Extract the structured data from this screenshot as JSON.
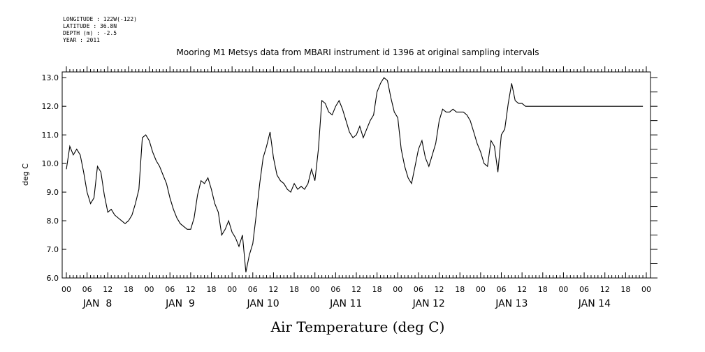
{
  "header": {
    "longitude": "LONGITUDE : 122W(-122)",
    "latitude": "LATITUDE : 36.8N",
    "depth": "DEPTH (m) : -2.5",
    "year": "YEAR : 2011"
  },
  "chart_data": {
    "type": "line",
    "title": "Mooring M1 Metsys data from MBARI instrument id 1396 at original sampling intervals",
    "xlabel": "Air Temperature (deg C)",
    "ylabel": "deg C",
    "ylim": [
      6.0,
      13.2
    ],
    "yticks": [
      "6.0",
      "7.0",
      "8.0",
      "9.0",
      "10.0",
      "11.0",
      "12.0",
      "13.0"
    ],
    "xrange_hours": [
      0,
      168
    ],
    "hour_tick_labels": [
      "00",
      "06",
      "12",
      "18",
      "00",
      "06",
      "12",
      "18",
      "00",
      "06",
      "12",
      "18",
      "00",
      "06",
      "12",
      "18",
      "00",
      "06",
      "12",
      "18",
      "00",
      "06",
      "12",
      "18",
      "00",
      "06",
      "12",
      "18",
      "00"
    ],
    "day_labels": [
      "JAN  8",
      "JAN  9",
      "JAN 10",
      "JAN 11",
      "JAN 12",
      "JAN 13",
      "JAN 14"
    ],
    "x_hours": [
      0,
      1,
      2,
      3,
      4,
      5,
      6,
      7,
      8,
      9,
      10,
      11,
      12,
      13,
      14,
      15,
      16,
      17,
      18,
      19,
      20,
      21,
      22,
      23,
      24,
      25,
      26,
      27,
      28,
      29,
      30,
      31,
      32,
      33,
      34,
      35,
      36,
      37,
      38,
      39,
      40,
      41,
      42,
      43,
      44,
      45,
      46,
      47,
      48,
      49,
      50,
      51,
      52,
      53,
      54,
      55,
      56,
      57,
      58,
      59,
      60,
      61,
      62,
      63,
      64,
      65,
      66,
      67,
      68,
      69,
      70,
      71,
      72,
      73,
      74,
      75,
      76,
      77,
      78,
      79,
      80,
      81,
      82,
      83,
      84,
      85,
      86,
      87,
      88,
      89,
      90,
      91,
      92,
      93,
      94,
      95,
      96,
      97,
      98,
      99,
      100,
      101,
      102,
      103,
      104,
      105,
      106,
      107,
      108,
      109,
      110,
      111,
      112,
      113,
      114,
      115,
      116,
      117,
      118,
      119,
      120,
      121,
      122,
      123,
      124,
      125,
      126,
      127,
      128,
      129,
      130,
      131,
      132,
      133,
      134,
      135,
      136,
      137,
      138,
      139,
      140,
      141,
      142,
      143,
      144,
      145,
      146,
      147,
      148,
      149,
      150,
      151,
      152,
      153,
      154,
      155,
      156,
      157,
      158,
      159,
      160,
      161,
      162,
      163,
      164,
      165,
      166,
      167
    ],
    "y_values": [
      9.8,
      10.6,
      10.3,
      10.5,
      10.3,
      9.7,
      9.0,
      8.6,
      8.8,
      9.9,
      9.7,
      8.9,
      8.3,
      8.4,
      8.2,
      8.1,
      8.0,
      7.9,
      8.0,
      8.2,
      8.6,
      9.1,
      10.9,
      11.0,
      10.8,
      10.4,
      10.1,
      9.9,
      9.6,
      9.3,
      8.8,
      8.4,
      8.1,
      7.9,
      7.8,
      7.7,
      7.7,
      8.1,
      8.9,
      9.4,
      9.3,
      9.5,
      9.1,
      8.6,
      8.3,
      7.5,
      7.7,
      8.0,
      7.6,
      7.4,
      7.1,
      7.5,
      6.2,
      6.8,
      7.2,
      8.2,
      9.3,
      10.2,
      10.6,
      11.1,
      10.2,
      9.6,
      9.4,
      9.3,
      9.1,
      9.0,
      9.3,
      9.1,
      9.2,
      9.1,
      9.3,
      9.8,
      9.4,
      10.5,
      12.2,
      12.1,
      11.8,
      11.7,
      12.0,
      12.2,
      11.9,
      11.5,
      11.1,
      10.9,
      11.0,
      11.3,
      10.9,
      11.2,
      11.5,
      11.7,
      12.5,
      12.8,
      13.0,
      12.9,
      12.3,
      11.8,
      11.6,
      10.5,
      9.9,
      9.5,
      9.3,
      9.9,
      10.5,
      10.8,
      10.2,
      9.9,
      10.3,
      10.7,
      11.5,
      11.9,
      11.8,
      11.8,
      11.9,
      11.8,
      11.8,
      11.8,
      11.7,
      11.5,
      11.1,
      10.7,
      10.4,
      10.0,
      9.9,
      10.8,
      10.6,
      9.7,
      11.0,
      11.2,
      12.1,
      12.8,
      12.2,
      12.1,
      12.1,
      12.0,
      12.0,
      12.0,
      12.0,
      12.0,
      12.0,
      12.0,
      12.0,
      12.0,
      12.0,
      12.0,
      12.0,
      12.0,
      12.0,
      12.0,
      12.0,
      12.0,
      12.0,
      12.0,
      12.0,
      12.0,
      12.0,
      12.0,
      12.0,
      12.0,
      12.0,
      12.0,
      12.0,
      12.0,
      12.0,
      12.0,
      12.0,
      12.0,
      12.0,
      12.0
    ],
    "grid": false,
    "series_color": "#000000"
  }
}
